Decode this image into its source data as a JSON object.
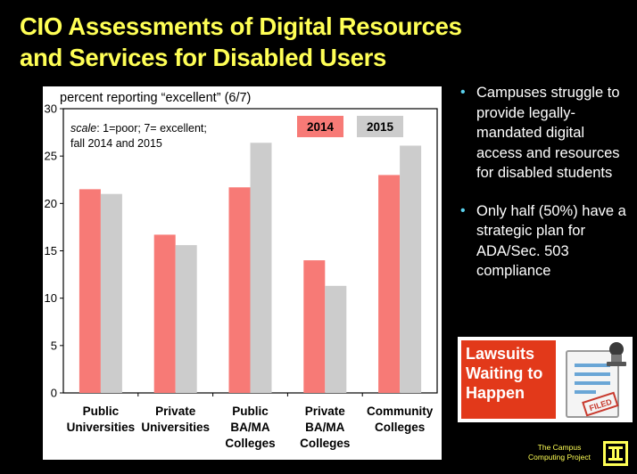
{
  "title": {
    "line1": "CIO Assessments of Digital Resources",
    "line2": "and Services for Disabled Users"
  },
  "chart_data": {
    "type": "bar",
    "subtitle": "percent reporting “excellent” (6/7)",
    "note": {
      "scale_word": "scale",
      "line1_rest": ": 1=poor; 7= excellent;",
      "line2": "fall 2014 and 2015"
    },
    "categories": [
      [
        "Public",
        "Universities"
      ],
      [
        "Private",
        "Universities"
      ],
      [
        "Public",
        "BA/MA",
        "Colleges"
      ],
      [
        "Private",
        "BA/MA",
        "Colleges"
      ],
      [
        "Community",
        "Colleges"
      ]
    ],
    "series": [
      {
        "name": "2014",
        "color": "#f77a76",
        "values": [
          21.5,
          16.7,
          21.7,
          14.0,
          23.0
        ]
      },
      {
        "name": "2015",
        "color": "#cccccc",
        "values": [
          21.0,
          15.6,
          26.4,
          11.3,
          26.1
        ]
      }
    ],
    "ylim": [
      0,
      30
    ],
    "yticks": [
      0,
      5,
      10,
      15,
      20,
      25,
      30
    ],
    "grid": false,
    "legend_position": "top-right"
  },
  "bullets": [
    "Campuses struggle to provide legally-mandated digital access and resources for disabled students",
    "Only half  (50%) have a strategic plan for ADA/Sec. 503 compliance"
  ],
  "bullet_symbol": "•",
  "callout": {
    "line1": "Lawsuits",
    "line2": "Waiting to",
    "line3": "Happen",
    "stamp_text": "FILED",
    "color": "#e2391a"
  },
  "footer": {
    "line1": "The Campus",
    "line2": "Computing Project"
  },
  "colors": {
    "title": "#ffff55",
    "bullet_dot": "#5ad2ee",
    "background": "#000000"
  }
}
